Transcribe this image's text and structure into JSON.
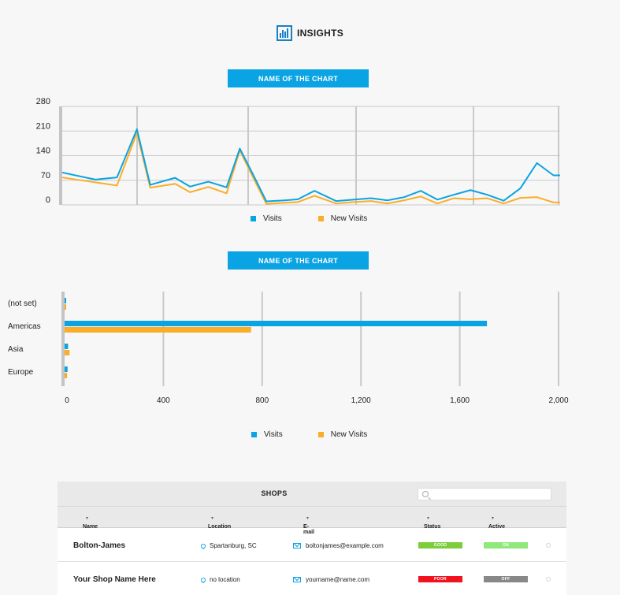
{
  "header": {
    "title": "INSIGHTS",
    "icon": "bar-chart-icon"
  },
  "line_chart": {
    "button_label": "NAME OF THE CHART"
  },
  "bar_chart": {
    "button_label": "NAME OF THE CHART"
  },
  "legend": {
    "visits": "Visits",
    "new_visits": "New Visits"
  },
  "colors": {
    "visits": "#0aa3e3",
    "new_visits": "#fbad27",
    "button": "#0aa3e3",
    "good": "#7ccd3a",
    "on": "#8ee87a",
    "poor": "#f0121f",
    "off": "#888888"
  },
  "chart_data": [
    {
      "type": "line",
      "y_ticks": [
        "0",
        "70",
        "140",
        "210",
        "280"
      ],
      "ylim": [
        0,
        280
      ],
      "xlim": [
        0,
        30
      ],
      "grid": true,
      "legend_position": "bottom",
      "series": [
        {
          "name": "Visits",
          "x": [
            0,
            2,
            3.3,
            4.5,
            5.3,
            6.8,
            7.7,
            8.8,
            9.9,
            10.7,
            11.5,
            12.3,
            13.4,
            14.2,
            15.2,
            16.5,
            17.6,
            18.6,
            19.6,
            20.6,
            21.6,
            22.6,
            23.6,
            24.6,
            25.6,
            26.6,
            27.6,
            28.6,
            29.6,
            30
          ],
          "values": [
            92,
            72,
            78,
            215,
            57,
            77,
            52,
            66,
            50,
            160,
            86,
            10,
            13,
            16,
            40,
            11,
            15,
            19,
            13,
            22,
            40,
            15,
            29,
            42,
            29,
            12,
            47,
            119,
            84,
            84
          ]
        },
        {
          "name": "New Visits",
          "x": [
            0,
            2,
            3.3,
            4.5,
            5.3,
            6.8,
            7.7,
            8.8,
            9.9,
            10.7,
            11.5,
            12.3,
            13.4,
            14.2,
            15.2,
            16.5,
            17.6,
            18.6,
            19.6,
            20.6,
            21.6,
            22.6,
            23.6,
            24.6,
            25.6,
            26.6,
            27.6,
            28.6,
            29.6,
            30
          ],
          "values": [
            78,
            64,
            55,
            205,
            49,
            60,
            36,
            51,
            33,
            155,
            78,
            3,
            6,
            8,
            26,
            4,
            8,
            11,
            4,
            13,
            24,
            4,
            19,
            16,
            19,
            4,
            20,
            22,
            7,
            7
          ]
        }
      ]
    },
    {
      "type": "bar",
      "orientation": "horizontal",
      "categories": [
        "(not set)",
        "Americas",
        "Asia",
        "Europe"
      ],
      "x_ticks": [
        "0",
        "400",
        "800",
        "1,200",
        "1,600",
        "2,000"
      ],
      "xlim": [
        0,
        2000
      ],
      "grid": true,
      "legend_position": "bottom",
      "series": [
        {
          "name": "Visits",
          "values": [
            6,
            1710,
            14,
            12
          ]
        },
        {
          "name": "New Visits",
          "values": [
            5,
            755,
            20,
            10
          ]
        }
      ]
    }
  ],
  "shops": {
    "title": "SHOPS",
    "search_placeholder": "",
    "columns": {
      "name": "Name",
      "location": "Location",
      "email": "E-mail",
      "status": "Status",
      "active": "Active",
      "sort": "▾"
    },
    "rows": [
      {
        "name": "Bolton-James",
        "location": "Spartanburg, SC",
        "email": "boltonjames@example.com",
        "status": "GOOD",
        "active": "ON"
      },
      {
        "name": "Your Shop Name Here",
        "location": "no location",
        "email": "yourname@name.com",
        "status": "POOR",
        "active": "OFF"
      }
    ]
  }
}
